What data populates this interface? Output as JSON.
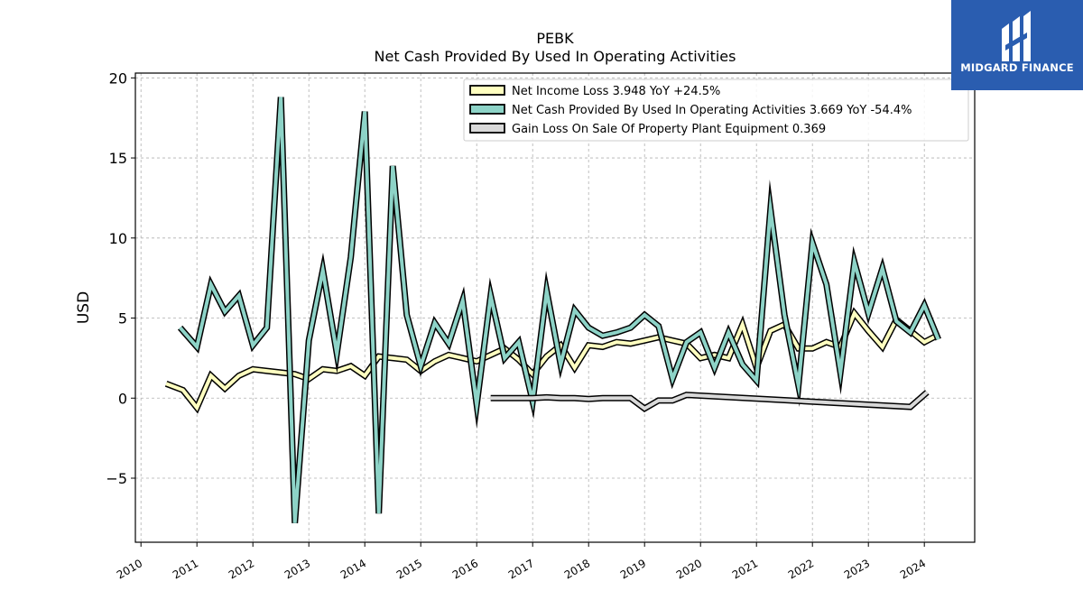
{
  "brand": {
    "name": "MIDGARD FINANCE",
    "color": "#2a5db0"
  },
  "chart_data": {
    "type": "line",
    "title": "PEBK",
    "subtitle": "Net Cash Provided By Used In Operating Activities",
    "ylabel": "USD",
    "xlabel": "",
    "xlim": [
      2009.9,
      2024.9
    ],
    "ylim": [
      -9,
      20.3
    ],
    "yticks": [
      -5,
      0,
      5,
      10,
      15,
      20
    ],
    "ytick_labels": [
      "−5",
      "0",
      "5",
      "10",
      "15",
      "20"
    ],
    "xticks": [
      2010,
      2011,
      2012,
      2013,
      2014,
      2015,
      2016,
      2017,
      2018,
      2019,
      2020,
      2021,
      2022,
      2023,
      2024
    ],
    "grid": true,
    "legend_position": "top-right",
    "series": [
      {
        "name": "Net Income Loss",
        "legend_label": "Net Income Loss  3.948 YoY +24.5%",
        "color": "#ffffc0",
        "x": [
          2010.45,
          2010.75,
          2011.0,
          2011.25,
          2011.5,
          2011.75,
          2012.0,
          2012.25,
          2012.5,
          2012.75,
          2013.0,
          2013.25,
          2013.5,
          2013.75,
          2014.0,
          2014.25,
          2014.5,
          2014.75,
          2015.0,
          2015.25,
          2015.5,
          2015.75,
          2016.0,
          2016.25,
          2016.5,
          2016.75,
          2017.0,
          2017.25,
          2017.5,
          2017.75,
          2018.0,
          2018.25,
          2018.5,
          2018.75,
          2019.0,
          2019.25,
          2019.5,
          2019.75,
          2020.0,
          2020.25,
          2020.5,
          2020.75,
          2021.0,
          2021.25,
          2021.5,
          2021.75,
          2022.0,
          2022.25,
          2022.5,
          2022.75,
          2023.0,
          2023.25,
          2023.5,
          2023.75,
          2024.0,
          2024.25
        ],
        "values": [
          0.9,
          0.5,
          -0.6,
          1.4,
          0.6,
          1.4,
          1.8,
          1.7,
          1.6,
          1.5,
          1.2,
          1.8,
          1.7,
          2.0,
          1.4,
          2.6,
          2.5,
          2.4,
          1.7,
          2.3,
          2.7,
          2.5,
          2.3,
          2.7,
          3.1,
          2.4,
          1.5,
          2.6,
          3.3,
          1.9,
          3.3,
          3.2,
          3.5,
          3.4,
          3.6,
          3.8,
          3.6,
          3.4,
          2.5,
          2.7,
          2.5,
          4.6,
          1.9,
          4.2,
          4.6,
          3.1,
          3.1,
          3.5,
          3.2,
          5.3,
          4.2,
          3.2,
          4.9,
          4.2,
          3.5,
          3.948
        ]
      },
      {
        "name": "Net Cash Provided By Used In Operating Activities",
        "legend_label": "Net Cash Provided By Used In Operating Activities  3.669 YoY -54.4%",
        "color": "#8dd3c7",
        "x": [
          2010.7,
          2011.0,
          2011.25,
          2011.5,
          2011.75,
          2012.0,
          2012.25,
          2012.5,
          2012.75,
          2013.0,
          2013.25,
          2013.5,
          2013.75,
          2014.0,
          2014.25,
          2014.5,
          2014.75,
          2015.0,
          2015.25,
          2015.5,
          2015.75,
          2016.0,
          2016.25,
          2016.5,
          2016.75,
          2017.0,
          2017.25,
          2017.5,
          2017.75,
          2018.0,
          2018.25,
          2018.5,
          2018.75,
          2019.0,
          2019.25,
          2019.5,
          2019.75,
          2020.0,
          2020.25,
          2020.5,
          2020.75,
          2021.0,
          2021.25,
          2021.5,
          2021.75,
          2022.0,
          2022.25,
          2022.5,
          2022.75,
          2023.0,
          2023.25,
          2023.5,
          2023.75,
          2024.0,
          2024.25
        ],
        "values": [
          4.4,
          3.2,
          7.1,
          5.4,
          6.4,
          3.3,
          4.4,
          18.8,
          -7.8,
          3.6,
          8.0,
          2.8,
          8.8,
          17.9,
          -7.2,
          14.5,
          5.2,
          2.0,
          4.7,
          3.4,
          6.1,
          -0.4,
          6.4,
          2.5,
          3.5,
          -0.2,
          6.7,
          2.1,
          5.5,
          4.4,
          3.9,
          4.1,
          4.4,
          5.2,
          4.5,
          1.2,
          3.5,
          4.1,
          1.9,
          4.1,
          2.1,
          1.1,
          11.8,
          5.2,
          0.8,
          9.7,
          7.1,
          1.6,
          8.5,
          5.3,
          8.1,
          4.8,
          4.1,
          5.8,
          3.669
        ]
      },
      {
        "name": "Gain Loss On Sale Of Property Plant Equipment",
        "legend_label": "Gain Loss On Sale Of Property Plant Equipment  0.369",
        "color": "#d9d9d9",
        "x": [
          2016.25,
          2016.5,
          2016.75,
          2017.0,
          2017.25,
          2017.5,
          2017.75,
          2018.0,
          2018.25,
          2018.5,
          2018.75,
          2019.0,
          2019.25,
          2019.5,
          2019.75,
          2023.75,
          2024.05
        ],
        "values": [
          0.0,
          0.0,
          0.0,
          0.0,
          0.05,
          0.0,
          0.0,
          -0.05,
          0.0,
          0.0,
          0.0,
          -0.65,
          -0.15,
          -0.15,
          0.2,
          -0.55,
          0.369
        ]
      }
    ]
  }
}
